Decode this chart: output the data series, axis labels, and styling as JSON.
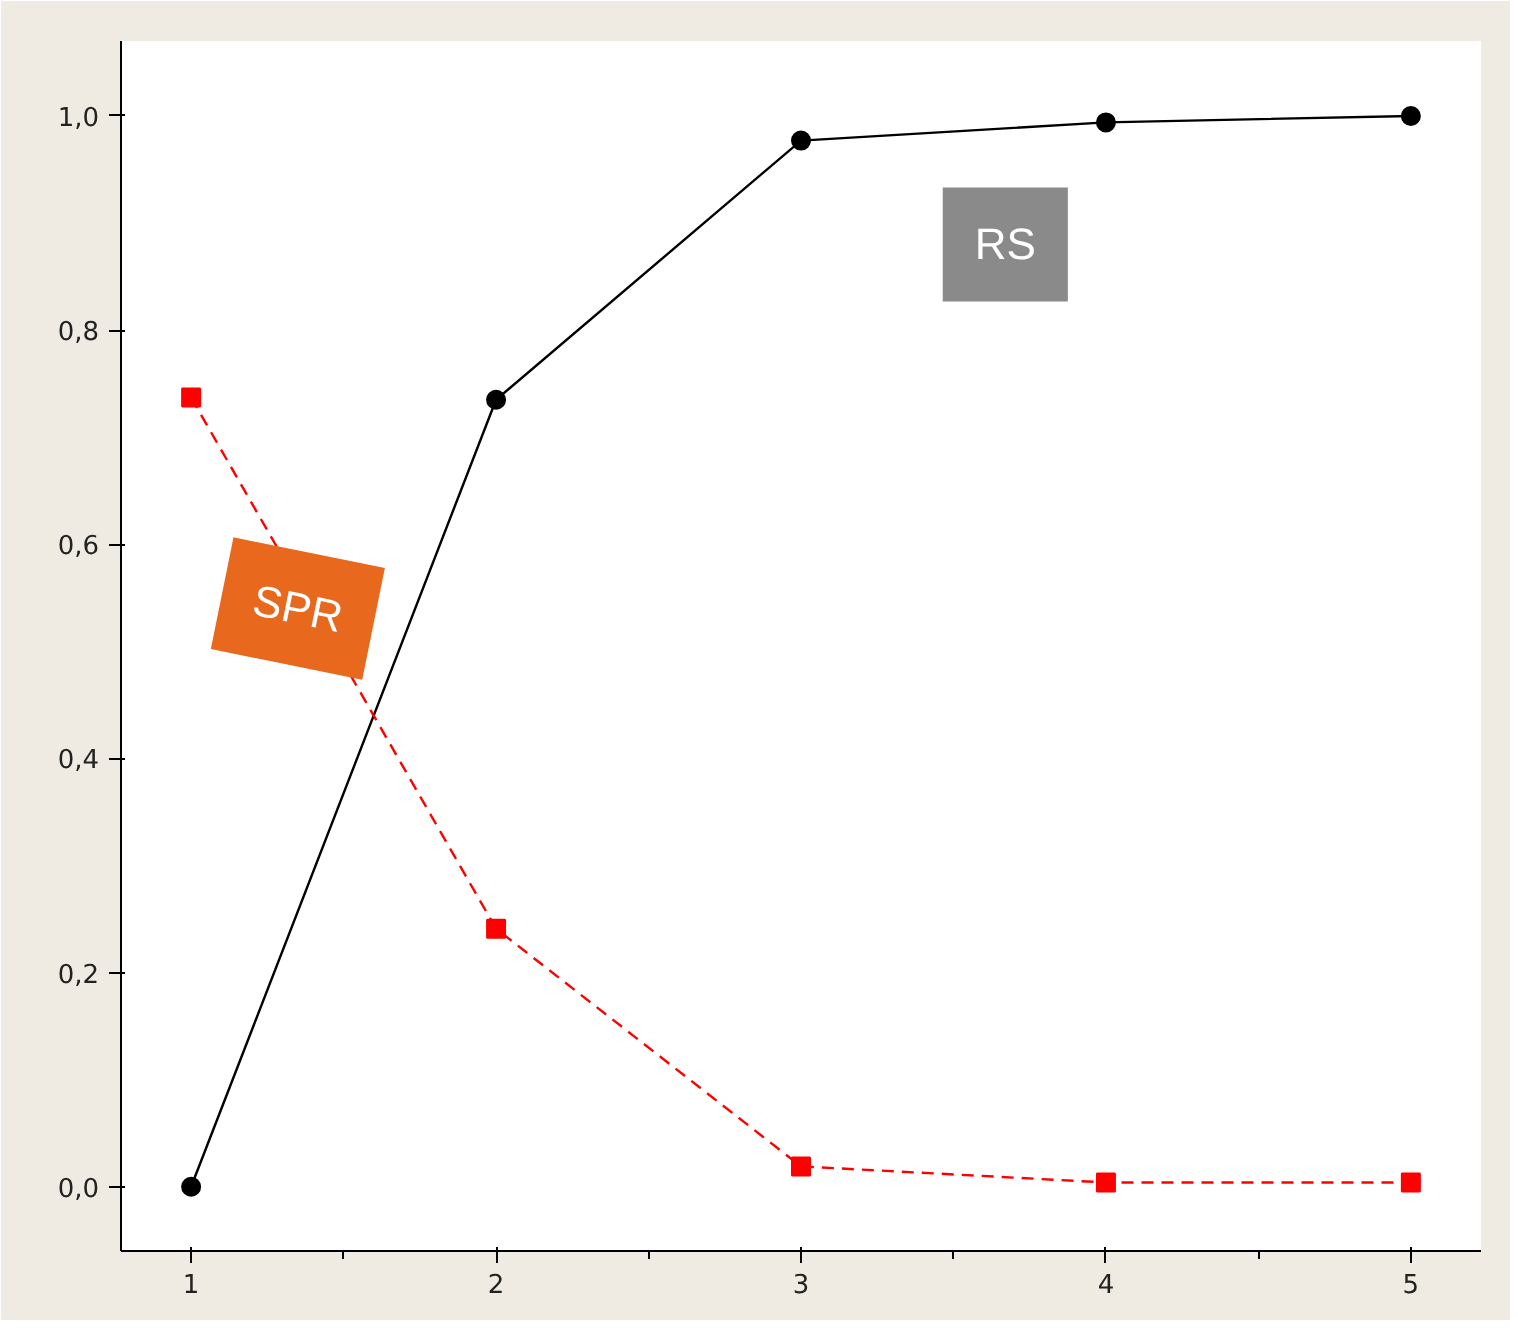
{
  "chart_data": {
    "type": "line",
    "x": [
      1,
      2,
      3,
      4,
      5
    ],
    "series": [
      {
        "name": "RS",
        "color": "#000000",
        "values": [
          0.0,
          0.735,
          0.977,
          0.994,
          1.0
        ],
        "marker": "circle",
        "line_style": "solid"
      },
      {
        "name": "SPR",
        "color": "#ff0000",
        "values": [
          0.737,
          0.241,
          0.019,
          0.004,
          0.004
        ],
        "marker": "square",
        "line_style": "dashed"
      }
    ],
    "xlim": [
      0.77,
      5.23
    ],
    "ylim": [
      -0.06,
      1.07
    ],
    "xticks": [
      1,
      2,
      3,
      4,
      5
    ],
    "yticks": [
      {
        "value": 0,
        "label": "0,0"
      },
      {
        "value": 0.2,
        "label": "0,2"
      },
      {
        "value": 0.4,
        "label": "0,4"
      },
      {
        "value": 0.6,
        "label": "0,6"
      },
      {
        "value": 0.8,
        "label": "0,8"
      },
      {
        "value": 1,
        "label": "1,0"
      }
    ],
    "grid": false
  }
}
